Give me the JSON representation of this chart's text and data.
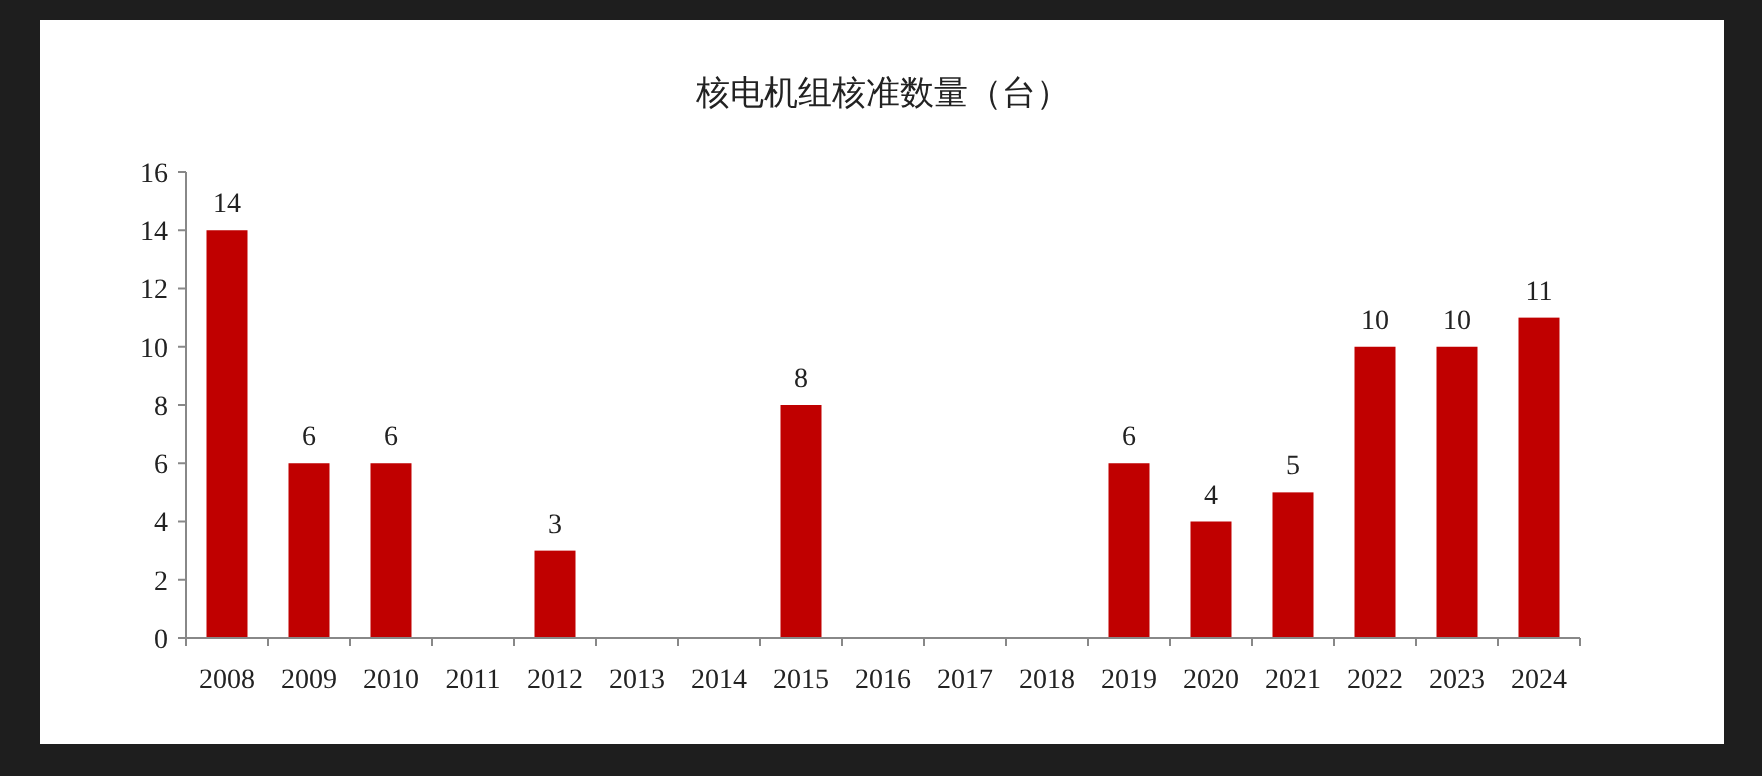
{
  "chart_data": {
    "type": "bar",
    "title": "核电机组核准数量（台）",
    "categories": [
      "2008",
      "2009",
      "2010",
      "2011",
      "2012",
      "2013",
      "2014",
      "2015",
      "2016",
      "2017",
      "2018",
      "2019",
      "2020",
      "2021",
      "2022",
      "2023",
      "2024"
    ],
    "values": [
      14,
      6,
      6,
      0,
      3,
      0,
      0,
      8,
      0,
      0,
      0,
      6,
      4,
      5,
      10,
      10,
      11
    ],
    "value_labels": [
      "14",
      "6",
      "6",
      null,
      "3",
      null,
      null,
      "8",
      null,
      null,
      null,
      "6",
      "4",
      "5",
      "10",
      "10",
      "11"
    ],
    "color": "#c00000",
    "ylim": [
      0,
      16
    ],
    "yticks": [
      0,
      2,
      4,
      6,
      8,
      10,
      12,
      14,
      16
    ],
    "grid": false
  }
}
